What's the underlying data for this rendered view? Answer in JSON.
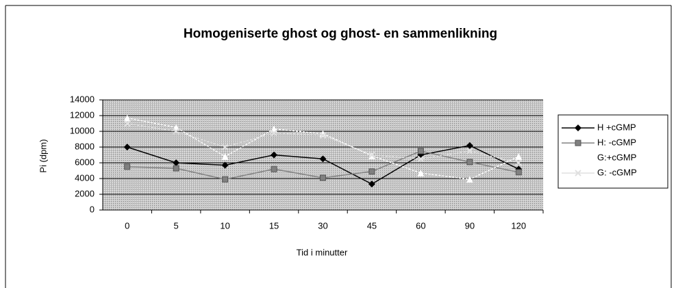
{
  "chart_data": {
    "type": "line",
    "title": "Homogeniserte ghost og ghost- en sammenlikning",
    "x_label": "Tid i minutter",
    "y_label": "Pi (dpm)",
    "categories": [
      "0",
      "5",
      "10",
      "15",
      "30",
      "45",
      "60",
      "90",
      "120"
    ],
    "series": [
      {
        "name": "H +cGMP",
        "color": "#000000",
        "marker": "diamond",
        "values": [
          8000,
          6000,
          5700,
          7000,
          6500,
          3300,
          7000,
          8200,
          5200
        ]
      },
      {
        "name": "H: -cGMP",
        "color": "#808080",
        "marker": "square",
        "values": [
          5500,
          5300,
          3900,
          5200,
          4100,
          4900,
          7500,
          6100,
          4800
        ]
      },
      {
        "name": "G:+cGMP",
        "color": "#ffffff",
        "marker": "triangle",
        "values": [
          11700,
          10500,
          6800,
          10300,
          9700,
          6900,
          4700,
          3900,
          6800
        ]
      },
      {
        "name": "G: -cGMP",
        "color": "#e0e0e0",
        "marker": "x",
        "values": [
          11000,
          10000,
          8000,
          9800,
          9500,
          7000,
          6500,
          7500,
          6000
        ]
      }
    ],
    "ylim": [
      0,
      14000
    ],
    "yticks": [
      0,
      2000,
      4000,
      6000,
      8000,
      10000,
      12000,
      14000
    ],
    "grid": true,
    "legend": "right"
  }
}
